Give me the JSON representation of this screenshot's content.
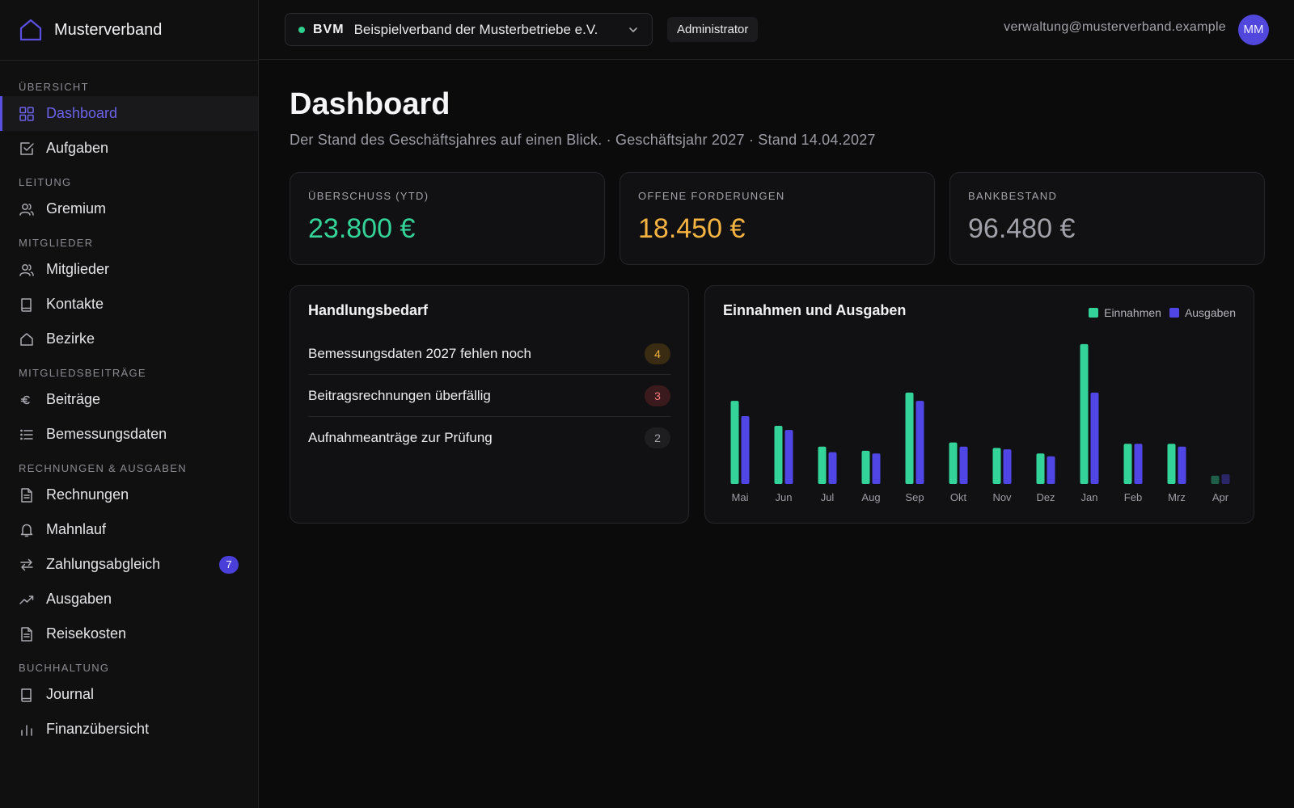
{
  "app": {
    "brand": "Musterverband"
  },
  "sidebar": {
    "sections": [
      {
        "title": "ÜBERSICHT",
        "items": [
          {
            "label": "Dashboard",
            "icon": "dashboard-grid-icon",
            "active": true
          },
          {
            "label": "Aufgaben",
            "icon": "checkbox-icon"
          }
        ]
      },
      {
        "title": "LEITUNG",
        "items": [
          {
            "label": "Gremium",
            "icon": "users-icon"
          }
        ]
      },
      {
        "title": "MITGLIEDER",
        "items": [
          {
            "label": "Mitglieder",
            "icon": "users-icon"
          },
          {
            "label": "Kontakte",
            "icon": "book-icon"
          },
          {
            "label": "Bezirke",
            "icon": "home-icon"
          }
        ]
      },
      {
        "title": "MITGLIEDSBEITRÄGE",
        "items": [
          {
            "label": "Beiträge",
            "icon": "euro-icon"
          },
          {
            "label": "Bemessungsdaten",
            "icon": "list-icon"
          }
        ]
      },
      {
        "title": "RECHNUNGEN & AUSGABEN",
        "items": [
          {
            "label": "Rechnungen",
            "icon": "document-icon"
          },
          {
            "label": "Mahnlauf",
            "icon": "bell-icon"
          },
          {
            "label": "Zahlungsabgleich",
            "icon": "arrows-exchange-icon",
            "badge": "7"
          },
          {
            "label": "Ausgaben",
            "icon": "trend-icon"
          },
          {
            "label": "Reisekosten",
            "icon": "document-icon"
          }
        ]
      },
      {
        "title": "BUCHHALTUNG",
        "items": [
          {
            "label": "Journal",
            "icon": "book-icon"
          },
          {
            "label": "Finanzübersicht",
            "icon": "bar-chart-icon"
          }
        ]
      }
    ]
  },
  "topbar": {
    "org_code": "BVM",
    "org_name": "Beispielverband der Musterbetriebe e.V.",
    "role": "Administrator",
    "email": "verwaltung@musterverband.example",
    "avatar_initials": "MM",
    "status_color": "#2fd08e"
  },
  "page": {
    "title": "Dashboard",
    "subtitle": "Der Stand des Geschäftsjahres auf einen Blick. · Geschäftsjahr 2027 · Stand 14.04.2027"
  },
  "kpis": [
    {
      "label": "ÜBERSCHUSS (YTD)",
      "value": "23.800 €",
      "color": "#34d399"
    },
    {
      "label": "OFFENE FORDERUNGEN",
      "value": "18.450 €",
      "color": "#f5b341"
    },
    {
      "label": "BANKBESTAND",
      "value": "96.480 €",
      "color": "#a1a1a9"
    }
  ],
  "actions": {
    "title": "Handlungsbedarf",
    "items": [
      {
        "label": "Bemessungsdaten 2027 fehlen noch",
        "count": "4",
        "bg": "#3a2c12",
        "fg": "#f5b341"
      },
      {
        "label": "Beitragsrechnungen überfällig",
        "count": "3",
        "bg": "#3a1a1c",
        "fg": "#f07878"
      },
      {
        "label": "Aufnahmeanträge zur Prüfung",
        "count": "2",
        "bg": "#1e1e21",
        "fg": "#a3a3aa"
      }
    ]
  },
  "chart_data": {
    "type": "bar",
    "title": "Einnahmen und Ausgaben",
    "legend_position": "top-right",
    "grid": false,
    "categories": [
      "Mai",
      "Jun",
      "Jul",
      "Aug",
      "Sep",
      "Okt",
      "Nov",
      "Dez",
      "Jan",
      "Feb",
      "Mrz",
      "Apr"
    ],
    "series": [
      {
        "name": "Einnahmen",
        "color": "#34d399",
        "values": [
          6.0,
          4.2,
          2.7,
          2.4,
          6.6,
          3.0,
          2.6,
          2.2,
          10.1,
          2.9,
          2.9,
          0.6
        ]
      },
      {
        "name": "Ausgaben",
        "color": "#4f46e5",
        "values": [
          4.9,
          3.9,
          2.3,
          2.2,
          6.0,
          2.7,
          2.5,
          2.0,
          6.6,
          2.9,
          2.7,
          0.7
        ]
      }
    ],
    "ylim": [
      0,
      10.5
    ],
    "faded_categories": [
      "Apr"
    ]
  }
}
